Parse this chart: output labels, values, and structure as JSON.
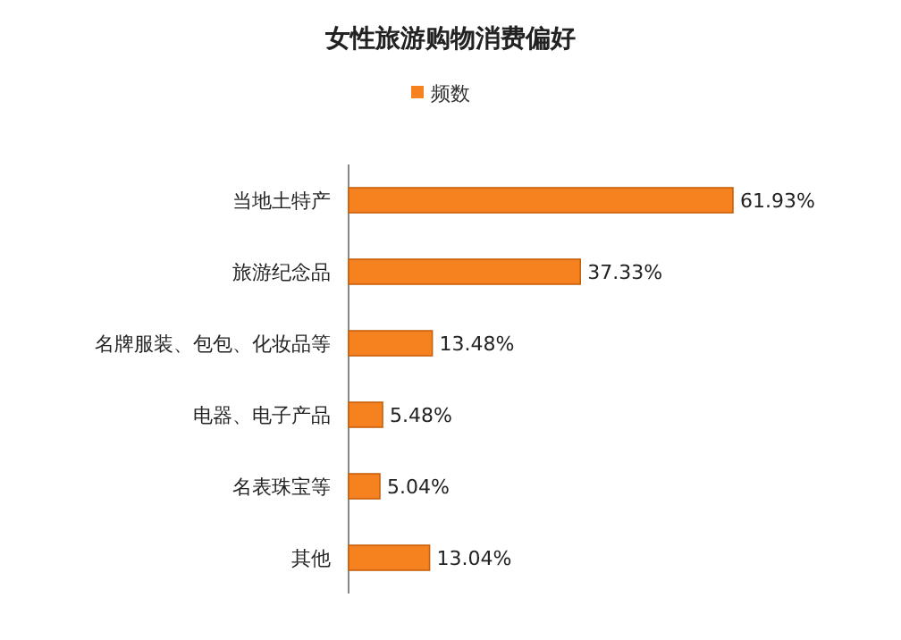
{
  "chart_data": {
    "type": "bar",
    "orientation": "horizontal",
    "title": "女性旅游购物消费偏好",
    "categories": [
      "当地土特产",
      "旅游纪念品",
      "名牌服装、包包、化妆品等",
      "电器、电子产品",
      "名表珠宝等",
      "其他"
    ],
    "series": [
      {
        "name": "频数",
        "color": "#f5821f",
        "values": [
          61.93,
          37.33,
          13.48,
          5.48,
          5.04,
          13.04
        ],
        "value_labels": [
          "61.93%",
          "37.33%",
          "13.48%",
          "5.48%",
          "5.04%",
          "13.04%"
        ]
      }
    ],
    "legend": "top"
  }
}
